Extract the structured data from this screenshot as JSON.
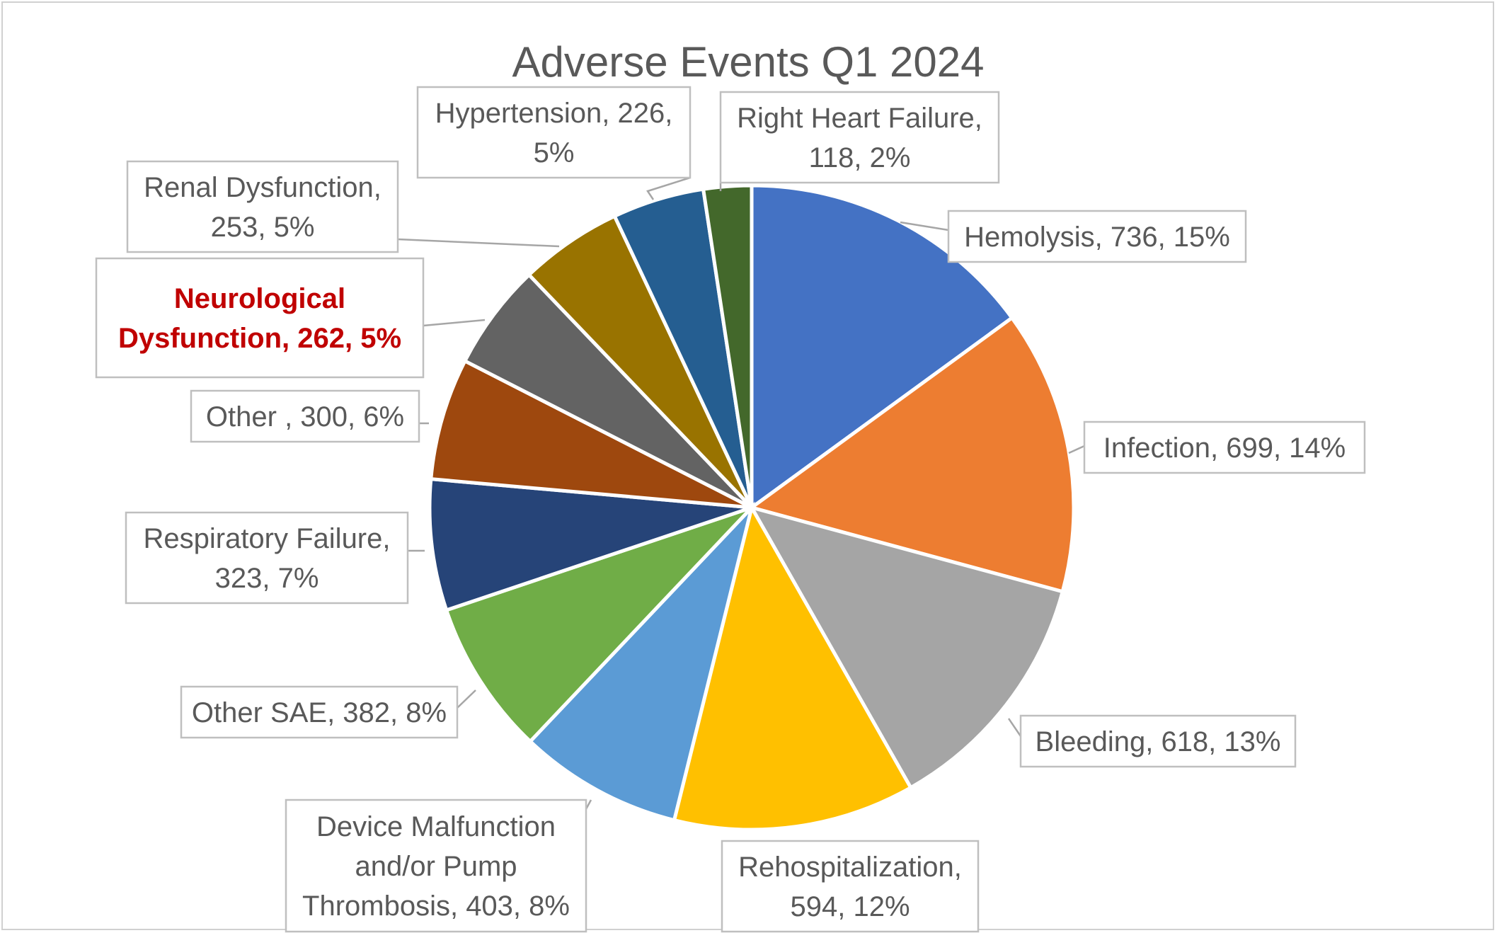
{
  "chart_data": {
    "type": "pie",
    "title": "Adverse Events Q1 2024",
    "slices": [
      {
        "category": "Hemolysis",
        "value": 736,
        "percent": "15%",
        "color": "#4472c4",
        "label_lines": [
          "Hemolysis, 736, 15%"
        ]
      },
      {
        "category": "Infection",
        "value": 699,
        "percent": "14%",
        "color": "#ed7d31",
        "label_lines": [
          "Infection, 699, 14%"
        ]
      },
      {
        "category": "Bleeding",
        "value": 618,
        "percent": "13%",
        "color": "#a5a5a5",
        "label_lines": [
          "Bleeding, 618, 13%"
        ]
      },
      {
        "category": "Rehospitalization",
        "value": 594,
        "percent": "12%",
        "color": "#ffc000",
        "label_lines": [
          "Rehospitalization,",
          "594, 12%"
        ]
      },
      {
        "category": "Device Malfunction and/or Pump Thrombosis",
        "value": 403,
        "percent": "8%",
        "color": "#5b9bd5",
        "label_lines": [
          "Device Malfunction",
          "and/or Pump",
          "Thrombosis, 403, 8%"
        ]
      },
      {
        "category": "Other SAE",
        "value": 382,
        "percent": "8%",
        "color": "#70ad47",
        "label_lines": [
          "Other SAE, 382, 8%"
        ]
      },
      {
        "category": "Respiratory Failure",
        "value": 323,
        "percent": "7%",
        "color": "#264478",
        "label_lines": [
          "Respiratory Failure,",
          "323, 7%"
        ]
      },
      {
        "category": "Other ",
        "value": 300,
        "percent": "6%",
        "color": "#9e480e",
        "label_lines": [
          "Other , 300, 6%"
        ]
      },
      {
        "category": "Neurological Dysfunction",
        "value": 262,
        "percent": "5%",
        "color": "#636363",
        "label_lines": [
          "Neurological",
          "Dysfunction, 262, 5%"
        ],
        "highlight_color": "#c00000"
      },
      {
        "category": "Renal Dysfunction",
        "value": 253,
        "percent": "5%",
        "color": "#997300",
        "label_lines": [
          "Renal Dysfunction,",
          "253, 5%"
        ]
      },
      {
        "category": "Hypertension",
        "value": 226,
        "percent": "5%",
        "color": "#255e91",
        "label_lines": [
          "Hypertension, 226,",
          "5%"
        ]
      },
      {
        "category": "Right Heart Failure",
        "value": 118,
        "percent": "2%",
        "color": "#43682b",
        "label_lines": [
          "Right Heart Failure,",
          "118, 2%"
        ]
      }
    ]
  }
}
